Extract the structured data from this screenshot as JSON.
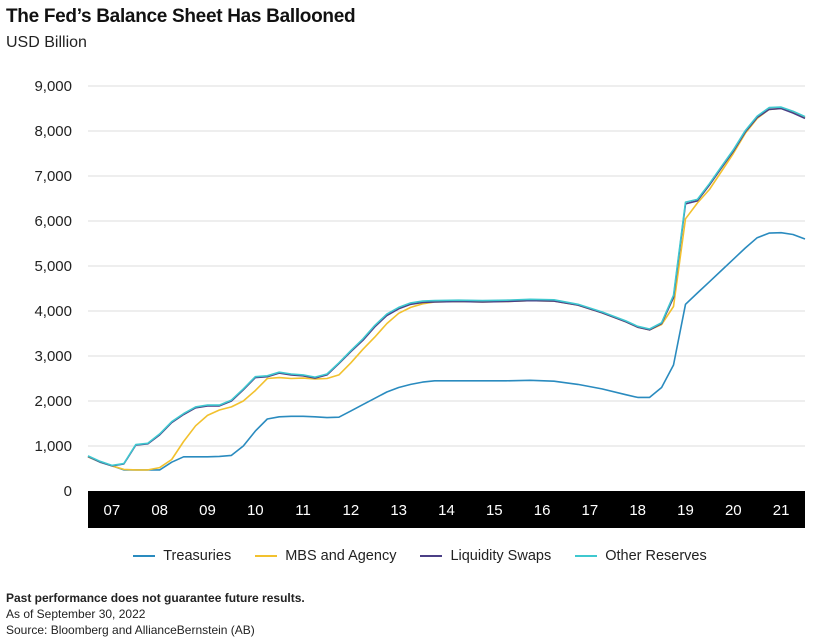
{
  "header": {
    "title": "The Fed’s Balance Sheet Has Ballooned",
    "subtitle": "USD Billion"
  },
  "footer": {
    "note": "Past performance does not guarantee future results.",
    "as_of": "As of September 30, 2022",
    "source": "Source: Bloomberg and AllianceBernstein (AB)"
  },
  "colors": {
    "treasuries": "#2a8bbf",
    "mbs": "#f2c12e",
    "swaps": "#4b3f86",
    "reserves": "#3fc8cf",
    "axis_band": "#000000",
    "grid": "#dcdcdc"
  },
  "chart_data": {
    "type": "line",
    "title": "The Fed’s Balance Sheet Has Ballooned",
    "ylabel": "USD Billion",
    "ylim": [
      0,
      9000
    ],
    "yticks": [
      0,
      1000,
      2000,
      3000,
      4000,
      5000,
      6000,
      7000,
      8000,
      9000
    ],
    "ytick_labels": [
      "0",
      "1,000",
      "2,000",
      "3,000",
      "4,000",
      "5,000",
      "6,000",
      "7,000",
      "8,000",
      "9,000"
    ],
    "xlim": [
      2006.75,
      2021.75
    ],
    "xticks": [
      2007.25,
      2008.25,
      2009.25,
      2010.25,
      2011.25,
      2012.25,
      2013.25,
      2014.25,
      2015.25,
      2016.25,
      2017.25,
      2018.25,
      2019.25,
      2020.25,
      2021.25
    ],
    "xtick_labels": [
      "07",
      "08",
      "09",
      "10",
      "11",
      "12",
      "13",
      "14",
      "15",
      "16",
      "17",
      "18",
      "19",
      "20",
      "21"
    ],
    "grid": true,
    "legend_position": "bottom",
    "series": [
      {
        "name": "Treasuries",
        "color": "#2a8bbf",
        "x": [
          2006.75,
          2007.0,
          2007.25,
          2007.5,
          2007.75,
          2008.0,
          2008.25,
          2008.5,
          2008.75,
          2009.0,
          2009.25,
          2009.5,
          2009.75,
          2010.0,
          2010.25,
          2010.5,
          2010.75,
          2011.0,
          2011.25,
          2011.5,
          2011.75,
          2012.0,
          2012.25,
          2012.5,
          2012.75,
          2013.0,
          2013.25,
          2013.5,
          2013.75,
          2014.0,
          2014.5,
          2015.0,
          2015.5,
          2016.0,
          2016.5,
          2017.0,
          2017.5,
          2018.0,
          2018.25,
          2018.5,
          2018.75,
          2019.0,
          2019.25,
          2019.5,
          2019.75,
          2020.0,
          2020.25,
          2020.5,
          2020.75,
          2021.0,
          2021.25,
          2021.5,
          2021.75
        ],
        "y": [
          760,
          640,
          560,
          470,
          470,
          470,
          470,
          640,
          760,
          760,
          760,
          770,
          790,
          1000,
          1330,
          1600,
          1650,
          1660,
          1660,
          1650,
          1630,
          1640,
          1780,
          1920,
          2060,
          2200,
          2300,
          2370,
          2420,
          2450,
          2450,
          2450,
          2450,
          2460,
          2440,
          2370,
          2270,
          2140,
          2080,
          2080,
          2300,
          2800,
          4150,
          4400,
          4650,
          4900,
          5150,
          5400,
          5630,
          5730,
          5740,
          5700,
          5600
        ]
      },
      {
        "name": "MBS and Agency",
        "color": "#f2c12e",
        "x": [
          2006.75,
          2007.0,
          2007.25,
          2007.5,
          2007.75,
          2008.0,
          2008.25,
          2008.5,
          2008.75,
          2009.0,
          2009.25,
          2009.5,
          2009.75,
          2010.0,
          2010.25,
          2010.5,
          2010.75,
          2011.0,
          2011.25,
          2011.5,
          2011.75,
          2012.0,
          2012.25,
          2012.5,
          2012.75,
          2013.0,
          2013.25,
          2013.5,
          2013.75,
          2014.0,
          2014.5,
          2015.0,
          2015.5,
          2016.0,
          2016.5,
          2017.0,
          2017.5,
          2018.0,
          2018.25,
          2018.5,
          2018.75,
          2019.0,
          2019.25,
          2019.5,
          2019.75,
          2020.0,
          2020.25,
          2020.5,
          2020.75,
          2021.0,
          2021.25,
          2021.5,
          2021.75
        ],
        "y": [
          760,
          650,
          560,
          480,
          470,
          470,
          520,
          700,
          1100,
          1450,
          1680,
          1800,
          1870,
          2000,
          2230,
          2500,
          2520,
          2500,
          2510,
          2490,
          2500,
          2580,
          2850,
          3150,
          3420,
          3720,
          3950,
          4080,
          4160,
          4200,
          4210,
          4200,
          4210,
          4230,
          4220,
          4130,
          3960,
          3760,
          3640,
          3580,
          3700,
          4100,
          6050,
          6400,
          6700,
          7100,
          7500,
          7950,
          8280,
          8480,
          8500,
          8420,
          8300
        ]
      },
      {
        "name": "Liquidity Swaps",
        "color": "#4b3f86",
        "x": [
          2006.75,
          2007.0,
          2007.25,
          2007.5,
          2007.75,
          2008.0,
          2008.25,
          2008.5,
          2008.75,
          2009.0,
          2009.25,
          2009.5,
          2009.75,
          2010.0,
          2010.25,
          2010.5,
          2010.75,
          2011.0,
          2011.25,
          2011.5,
          2011.75,
          2012.0,
          2012.25,
          2012.5,
          2012.75,
          2013.0,
          2013.25,
          2013.5,
          2013.75,
          2014.0,
          2014.5,
          2015.0,
          2015.5,
          2016.0,
          2016.5,
          2017.0,
          2017.5,
          2018.0,
          2018.25,
          2018.5,
          2018.75,
          2019.0,
          2019.25,
          2019.5,
          2019.75,
          2020.0,
          2020.25,
          2020.5,
          2020.75,
          2021.0,
          2021.25,
          2021.5,
          2021.75
        ],
        "y": [
          770,
          650,
          560,
          600,
          1020,
          1050,
          1250,
          1520,
          1700,
          1850,
          1890,
          1890,
          2000,
          2250,
          2520,
          2540,
          2620,
          2580,
          2560,
          2510,
          2580,
          2830,
          3100,
          3350,
          3650,
          3900,
          4050,
          4150,
          4190,
          4200,
          4210,
          4200,
          4210,
          4230,
          4220,
          4130,
          3960,
          3760,
          3640,
          3580,
          3720,
          4300,
          6380,
          6450,
          6800,
          7180,
          7550,
          7980,
          8300,
          8480,
          8500,
          8400,
          8280
        ]
      },
      {
        "name": "Other Reserves",
        "color": "#3fc8cf",
        "x": [
          2006.75,
          2007.0,
          2007.25,
          2007.5,
          2007.75,
          2008.0,
          2008.25,
          2008.5,
          2008.75,
          2009.0,
          2009.25,
          2009.5,
          2009.75,
          2010.0,
          2010.25,
          2010.5,
          2010.75,
          2011.0,
          2011.25,
          2011.5,
          2011.75,
          2012.0,
          2012.25,
          2012.5,
          2012.75,
          2013.0,
          2013.25,
          2013.5,
          2013.75,
          2014.0,
          2014.5,
          2015.0,
          2015.5,
          2016.0,
          2016.5,
          2017.0,
          2017.5,
          2018.0,
          2018.25,
          2018.5,
          2018.75,
          2019.0,
          2019.25,
          2019.5,
          2019.75,
          2020.0,
          2020.25,
          2020.5,
          2020.75,
          2021.0,
          2021.25,
          2021.5,
          2021.75
        ],
        "y": [
          780,
          660,
          570,
          610,
          1030,
          1060,
          1270,
          1540,
          1720,
          1870,
          1910,
          1910,
          2020,
          2270,
          2540,
          2560,
          2640,
          2600,
          2580,
          2530,
          2600,
          2850,
          3120,
          3380,
          3680,
          3930,
          4080,
          4180,
          4220,
          4230,
          4240,
          4230,
          4240,
          4260,
          4250,
          4150,
          3980,
          3780,
          3660,
          3600,
          3740,
          4350,
          6420,
          6480,
          6830,
          7210,
          7580,
          8010,
          8330,
          8520,
          8530,
          8440,
          8320
        ]
      }
    ]
  }
}
